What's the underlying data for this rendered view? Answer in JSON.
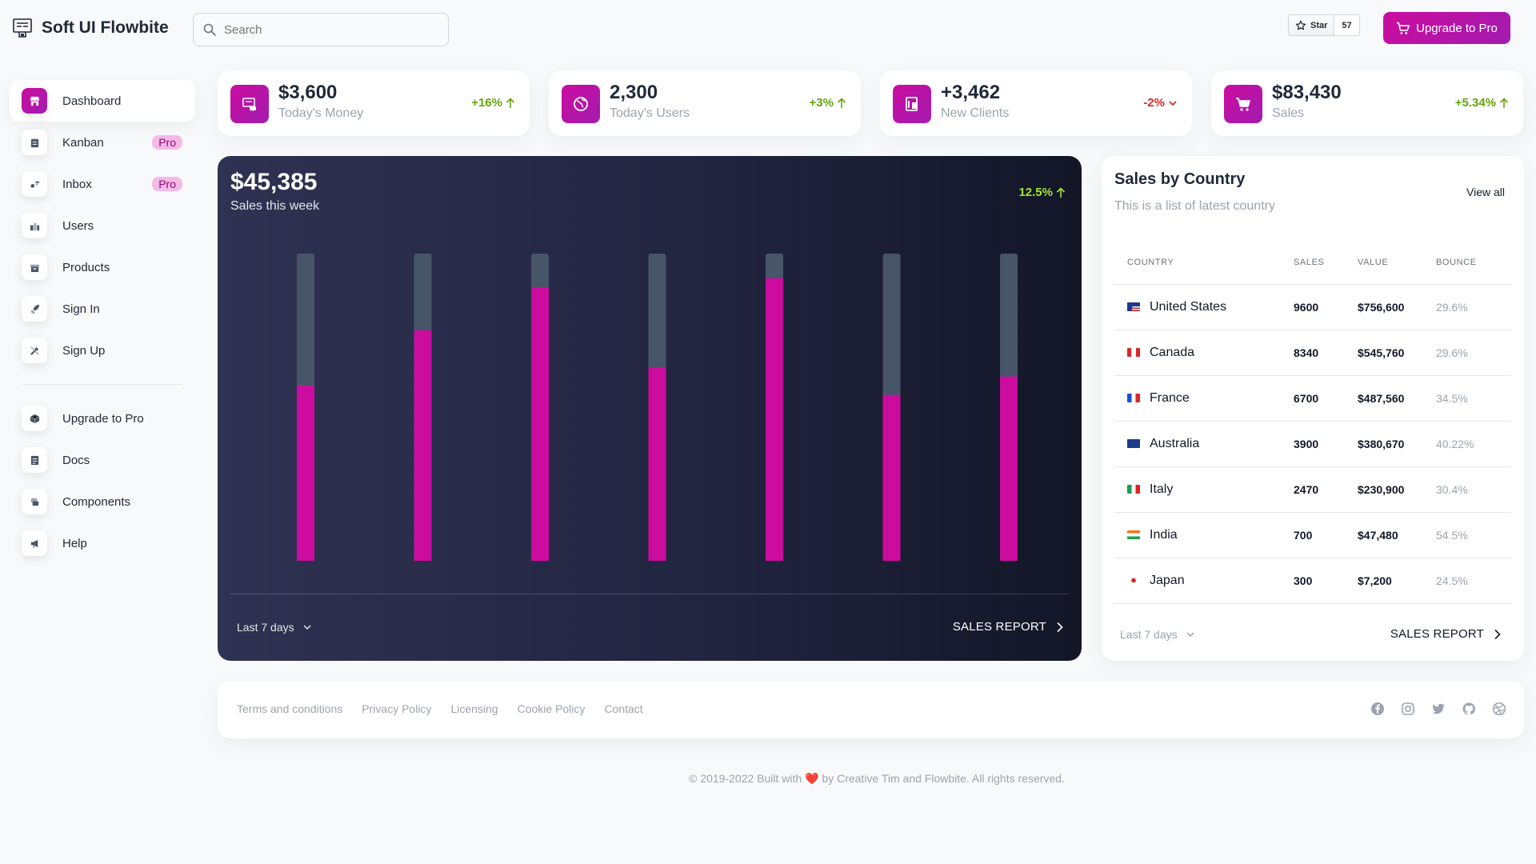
{
  "brand": {
    "name": "Soft UI Flowbite"
  },
  "search": {
    "placeholder": "Search"
  },
  "github": {
    "star_label": "Star",
    "star_count": "57"
  },
  "header": {
    "upgrade_label": "Upgrade to Pro"
  },
  "sidebar": {
    "items": [
      {
        "label": "Dashboard",
        "icon": "shop-icon",
        "active": true
      },
      {
        "label": "Kanban",
        "icon": "clipboard-icon",
        "badge": "Pro"
      },
      {
        "label": "Inbox",
        "icon": "inbox-icon",
        "badge": "Pro"
      },
      {
        "label": "Users",
        "icon": "users-icon"
      },
      {
        "label": "Products",
        "icon": "archive-icon"
      },
      {
        "label": "Sign In",
        "icon": "rocket-icon"
      },
      {
        "label": "Sign Up",
        "icon": "tools-icon"
      }
    ],
    "secondary": [
      {
        "label": "Upgrade to Pro",
        "icon": "cube-icon"
      },
      {
        "label": "Docs",
        "icon": "document-icon"
      },
      {
        "label": "Components",
        "icon": "layers-icon"
      },
      {
        "label": "Help",
        "icon": "megaphone-icon"
      }
    ]
  },
  "stats": [
    {
      "value": "$3,600",
      "label": "Today's Money",
      "change": "+16%",
      "direction": "up",
      "icon": "money-icon"
    },
    {
      "value": "2,300",
      "label": "Today's Users",
      "change": "+3%",
      "direction": "up",
      "icon": "globe-icon"
    },
    {
      "value": "+3,462",
      "label": "New Clients",
      "change": "-2%",
      "direction": "down",
      "icon": "client-icon"
    },
    {
      "value": "$83,430",
      "label": "Sales",
      "change": "+5.34%",
      "direction": "up",
      "icon": "cart-icon"
    }
  ],
  "sales_week": {
    "value": "$45,385",
    "subtitle": "Sales this week",
    "change": "12.5%",
    "range_label": "Last 7 days",
    "report_label": "SALES REPORT"
  },
  "chart_data": {
    "type": "bar",
    "categories": [
      "",
      "",
      "",
      "",
      "",
      "",
      ""
    ],
    "values": [
      57,
      75,
      89,
      63,
      92,
      54,
      60
    ],
    "background_values": [
      100,
      100,
      100,
      100,
      100,
      100,
      100
    ],
    "ylim": [
      0,
      100
    ],
    "grid": false,
    "legend": "none",
    "colors": {
      "bar": "#cb0c9f",
      "track": "#475569"
    }
  },
  "country_table": {
    "title": "Sales by Country",
    "subtitle": "This is a list of latest country",
    "view_all": "View all",
    "headers": [
      "COUNTRY",
      "SALES",
      "VALUE",
      "BOUNCE"
    ],
    "rows": [
      {
        "country": "United States",
        "flag": "us",
        "sales": "9600",
        "value": "$756,600",
        "bounce": "29.6%"
      },
      {
        "country": "Canada",
        "flag": "ca",
        "sales": "8340",
        "value": "$545,760",
        "bounce": "29.6%"
      },
      {
        "country": "France",
        "flag": "fr",
        "sales": "6700",
        "value": "$487,560",
        "bounce": "34.5%"
      },
      {
        "country": "Australia",
        "flag": "au",
        "sales": "3900",
        "value": "$380,670",
        "bounce": "40.22%"
      },
      {
        "country": "Italy",
        "flag": "it",
        "sales": "2470",
        "value": "$230,900",
        "bounce": "30.4%"
      },
      {
        "country": "India",
        "flag": "in",
        "sales": "700",
        "value": "$47,480",
        "bounce": "54.5%"
      },
      {
        "country": "Japan",
        "flag": "jp",
        "sales": "300",
        "value": "$7,200",
        "bounce": "24.5%"
      }
    ],
    "range_label": "Last 7 days",
    "report_label": "SALES REPORT"
  },
  "footer": {
    "links": [
      "Terms and conditions",
      "Privacy Policy",
      "Licensing",
      "Cookie Policy",
      "Contact"
    ],
    "social": [
      "facebook-icon",
      "instagram-icon",
      "twitter-icon",
      "github-icon",
      "dribbble-icon"
    ]
  },
  "copyright": {
    "before": "© 2019-2022 Built with",
    "after": "by Creative Tim and Flowbite. All rights reserved."
  },
  "colors": {
    "accent": "#cb0c9f",
    "positive": "#65a30d",
    "negative": "#dc2626"
  }
}
